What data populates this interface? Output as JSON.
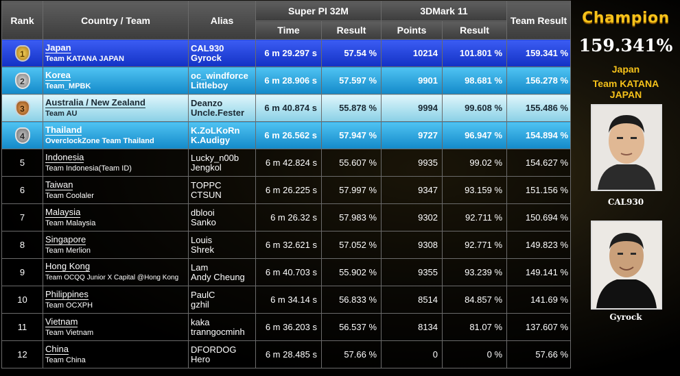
{
  "header": {
    "rank": "Rank",
    "country": "Country / Team",
    "alias": "Alias",
    "superpi": "Super PI 32M",
    "threedmark": "3DMark 11",
    "team_result": "Team Result",
    "time": "Time",
    "result1": "Result",
    "points": "Points",
    "result2": "Result"
  },
  "rows": [
    {
      "rank": "1",
      "country": "Japan",
      "team": "Team KATANA JAPAN",
      "alias1": "CAL930",
      "alias2": "Gyrock",
      "time": "6 m 29.297 s",
      "pi_result": "57.54 %",
      "points": "10214",
      "mark_result": "101.801 %",
      "team_result": "159.341 %"
    },
    {
      "rank": "2",
      "country": "Korea",
      "team": "Team_MPBK",
      "alias1": "oc_windforce",
      "alias2": "Littleboy",
      "time": "6 m 28.906 s",
      "pi_result": "57.597 %",
      "points": "9901",
      "mark_result": "98.681 %",
      "team_result": "156.278 %"
    },
    {
      "rank": "3",
      "country": "Australia / New Zealand",
      "team": "Team AU",
      "alias1": "Deanzo",
      "alias2": "Uncle.Fester",
      "time": "6 m 40.874 s",
      "pi_result": "55.878 %",
      "points": "9994",
      "mark_result": "99.608 %",
      "team_result": "155.486 %"
    },
    {
      "rank": "4",
      "country": "Thailand",
      "team": "OverclockZone Team Thailand",
      "alias1": "K.ZoLKoRn",
      "alias2": "K.Audigy",
      "time": "6 m 26.562 s",
      "pi_result": "57.947 %",
      "points": "9727",
      "mark_result": "96.947 %",
      "team_result": "154.894 %"
    },
    {
      "rank": "5",
      "country": "Indonesia",
      "team": "Team Indonesia(Team ID)",
      "alias1": "Lucky_n00b",
      "alias2": "Jengkol",
      "time": "6 m 42.824 s",
      "pi_result": "55.607 %",
      "points": "9935",
      "mark_result": "99.02 %",
      "team_result": "154.627 %"
    },
    {
      "rank": "6",
      "country": "Taiwan",
      "team": "Team Coolaler",
      "alias1": "TOPPC",
      "alias2": "CTSUN",
      "time": "6 m 26.225 s",
      "pi_result": "57.997 %",
      "points": "9347",
      "mark_result": "93.159 %",
      "team_result": "151.156 %"
    },
    {
      "rank": "7",
      "country": "Malaysia",
      "team": "Team Malaysia",
      "alias1": "dblooi",
      "alias2": "Sanko",
      "time": "6 m 26.32 s",
      "pi_result": "57.983 %",
      "points": "9302",
      "mark_result": "92.711 %",
      "team_result": "150.694 %"
    },
    {
      "rank": "8",
      "country": "Singapore",
      "team": "Team Merlion",
      "alias1": "Louis",
      "alias2": "Shrek",
      "time": "6 m 32.621 s",
      "pi_result": "57.052 %",
      "points": "9308",
      "mark_result": "92.771 %",
      "team_result": "149.823 %"
    },
    {
      "rank": "9",
      "country": "Hong Kong",
      "team": "Team OCQQ Junior X Capital @Hong Kong",
      "alias1": "Lam",
      "alias2": "Andy Cheung",
      "time": "6 m 40.703 s",
      "pi_result": "55.902 %",
      "points": "9355",
      "mark_result": "93.239 %",
      "team_result": "149.141 %"
    },
    {
      "rank": "10",
      "country": "Philippines",
      "team": "Team OCXPH",
      "alias1": "PaulC",
      "alias2": "gzhil",
      "time": "6 m 34.14 s",
      "pi_result": "56.833 %",
      "points": "8514",
      "mark_result": "84.857 %",
      "team_result": "141.69 %"
    },
    {
      "rank": "11",
      "country": "Vietnam",
      "team": "Team Vietnam",
      "alias1": "kaka",
      "alias2": "tranngocminh",
      "time": "6 m 36.203 s",
      "pi_result": "56.537 %",
      "points": "8134",
      "mark_result": "81.07 %",
      "team_result": "137.607 %"
    },
    {
      "rank": "12",
      "country": "China",
      "team": "Team China",
      "alias1": "DFORDOG",
      "alias2": "Hero",
      "time": "6 m 28.485 s",
      "pi_result": "57.66 %",
      "points": "0",
      "mark_result": "0 %",
      "team_result": "57.66 %"
    }
  ],
  "champion": {
    "title": "Champion",
    "score": "159.341%",
    "country": "Japan",
    "team": "Team KATANA JAPAN",
    "member1": "CAL930",
    "member2": "Gyrock"
  },
  "colors": {
    "gold": "#f6c21a",
    "row1": "#1f3fd8",
    "row2": "#1da4dc",
    "row3": "#bfe8f2",
    "row4": "#1da4dc"
  }
}
